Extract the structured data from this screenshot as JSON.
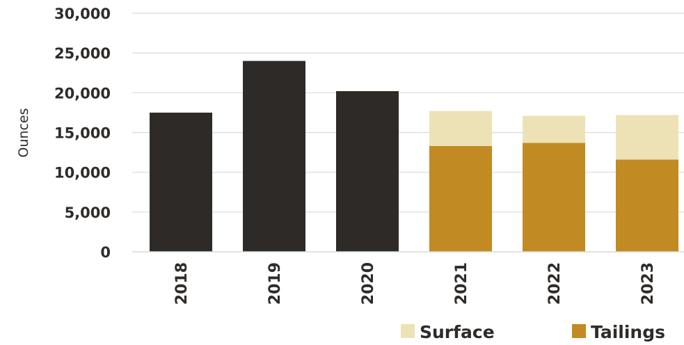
{
  "chart_data": {
    "type": "bar",
    "stacked": true,
    "categories": [
      "2018",
      "2019",
      "2020",
      "2021",
      "2022",
      "2023"
    ],
    "series": [
      {
        "name": "",
        "color": "#2e2a27",
        "values": [
          17500,
          24000,
          20200,
          null,
          null,
          null
        ]
      },
      {
        "name": "Tailings",
        "color": "#c28a22",
        "values": [
          null,
          null,
          null,
          13300,
          13700,
          11600
        ]
      },
      {
        "name": "Surface",
        "color": "#ede2b5",
        "values": [
          null,
          null,
          null,
          4400,
          3400,
          5600
        ]
      }
    ],
    "ylabel": "Ounces",
    "xlabel": "",
    "ylim": [
      0,
      30000
    ],
    "yticks": [
      "0",
      "5,000",
      "10,000",
      "15,000",
      "20,000",
      "25,000",
      "30,000"
    ],
    "grid": true,
    "legend": {
      "position": "bottom-right",
      "entries": [
        {
          "label": "Surface",
          "color": "#ede2b5"
        },
        {
          "label": "Tailings",
          "color": "#c28a22"
        }
      ]
    }
  }
}
